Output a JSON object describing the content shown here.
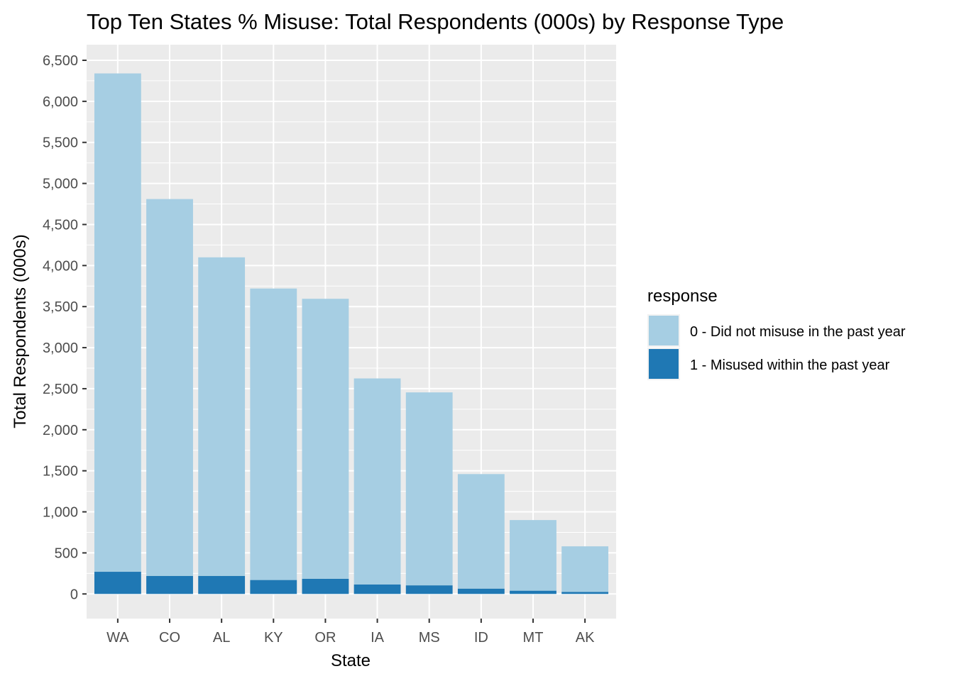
{
  "chart_data": {
    "type": "bar",
    "stacked": true,
    "title": "Top Ten States % Misuse: Total Respondents (000s) by Response Type",
    "xlabel": "State",
    "ylabel": "Total Respondents (000s)",
    "categories": [
      "WA",
      "CO",
      "AL",
      "KY",
      "OR",
      "IA",
      "MS",
      "ID",
      "MT",
      "AK"
    ],
    "series": [
      {
        "name": "1 - Misused within the past year",
        "color": "#1F78B4",
        "values": [
          270,
          220,
          220,
          170,
          185,
          115,
          105,
          65,
          40,
          25
        ]
      },
      {
        "name": "0 - Did not misuse in the past year",
        "color": "#A6CEE3",
        "values": [
          6070,
          4590,
          3880,
          3550,
          3410,
          2510,
          2350,
          1395,
          860,
          555
        ]
      }
    ],
    "totals": [
      6340,
      4810,
      4100,
      3720,
      3595,
      2625,
      2455,
      1460,
      900,
      580
    ],
    "ylim": [
      -300,
      6690
    ],
    "yticks": [
      0,
      500,
      1000,
      1500,
      2000,
      2500,
      3000,
      3500,
      4000,
      4500,
      5000,
      5500,
      6000,
      6500
    ],
    "ytick_labels": [
      "0",
      "500",
      "1,000",
      "1,500",
      "2,000",
      "2,500",
      "3,000",
      "3,500",
      "4,000",
      "4,500",
      "5,000",
      "5,500",
      "6,000",
      "6,500"
    ],
    "grid": true,
    "legend": {
      "title": "response",
      "position": "right",
      "entries": [
        {
          "label": "0 - Did not misuse in the past year",
          "color": "#A6CEE3"
        },
        {
          "label": "1 - Misused within the past year",
          "color": "#1F78B4"
        }
      ]
    },
    "panel_background": "#EBEBEB"
  }
}
